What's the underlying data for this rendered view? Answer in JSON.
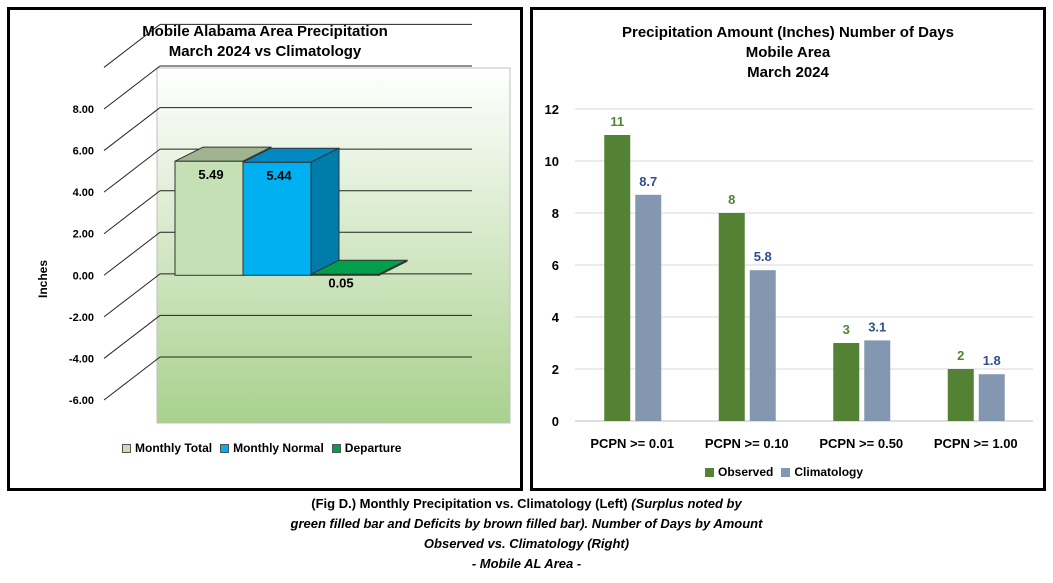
{
  "left_chart": {
    "title_line1": "Mobile Alabama Area Precipitation",
    "title_line2": "March 2024 vs Climatology",
    "ylabel": "Inches",
    "y_ticks": [
      "8.00",
      "6.00",
      "4.00",
      "2.00",
      "0.00",
      "-2.00",
      "-4.00",
      "-6.00"
    ],
    "legend": [
      "Monthly Total",
      "Monthly Normal",
      "Departure"
    ],
    "colors": {
      "total": "#c5e0b4",
      "normal": "#00b0f0",
      "departure": "#00a04a"
    }
  },
  "right_chart": {
    "title_line1": "Precipitation Amount (Inches) Number of Days",
    "title_line2": "Mobile Area",
    "title_line3": "March 2024",
    "y_ticks": [
      "0",
      "2",
      "4",
      "6",
      "8",
      "10",
      "12"
    ],
    "legend": [
      "Observed",
      "Climatology"
    ],
    "colors": {
      "observed": "#548235",
      "climatology": "#8497b0"
    }
  },
  "chart_data": [
    {
      "type": "bar",
      "title": "Mobile Alabama Area Precipitation March 2024 vs Climatology",
      "ylabel": "Inches",
      "ylim": [
        -6,
        8
      ],
      "categories": [
        "Monthly Total",
        "Monthly Normal",
        "Departure"
      ],
      "values": [
        5.49,
        5.44,
        0.05
      ],
      "labels": [
        "5.49",
        "5.44",
        "0.05"
      ],
      "style": "3d",
      "grid": true,
      "legend": "bottom"
    },
    {
      "type": "bar",
      "title": "Precipitation Amount (Inches) Number of Days Mobile Area March 2024",
      "categories": [
        "PCPN >= 0.01",
        "PCPN >= 0.10",
        "PCPN >= 0.50",
        "PCPN >= 1.00"
      ],
      "ylim": [
        0,
        12
      ],
      "series": [
        {
          "name": "Observed",
          "values": [
            11,
            8,
            3,
            2
          ],
          "labels": [
            "11",
            "8",
            "3",
            "2"
          ]
        },
        {
          "name": "Climatology",
          "values": [
            8.7,
            5.8,
            3.1,
            1.8
          ],
          "labels": [
            "8.7",
            "5.8",
            "3.1",
            "1.8"
          ]
        }
      ],
      "grid": true,
      "legend": "bottom"
    }
  ],
  "caption": {
    "line1_normal": "(Fig D.) Monthly Precipitation vs. Climatology (Left) ",
    "line1_italic": "(Surplus noted by",
    "line2": "green filled bar and Deficits by brown filled bar). Number of Days by Amount",
    "line3": "Observed vs. Climatology (Right)",
    "line4": "- Mobile AL Area -"
  }
}
